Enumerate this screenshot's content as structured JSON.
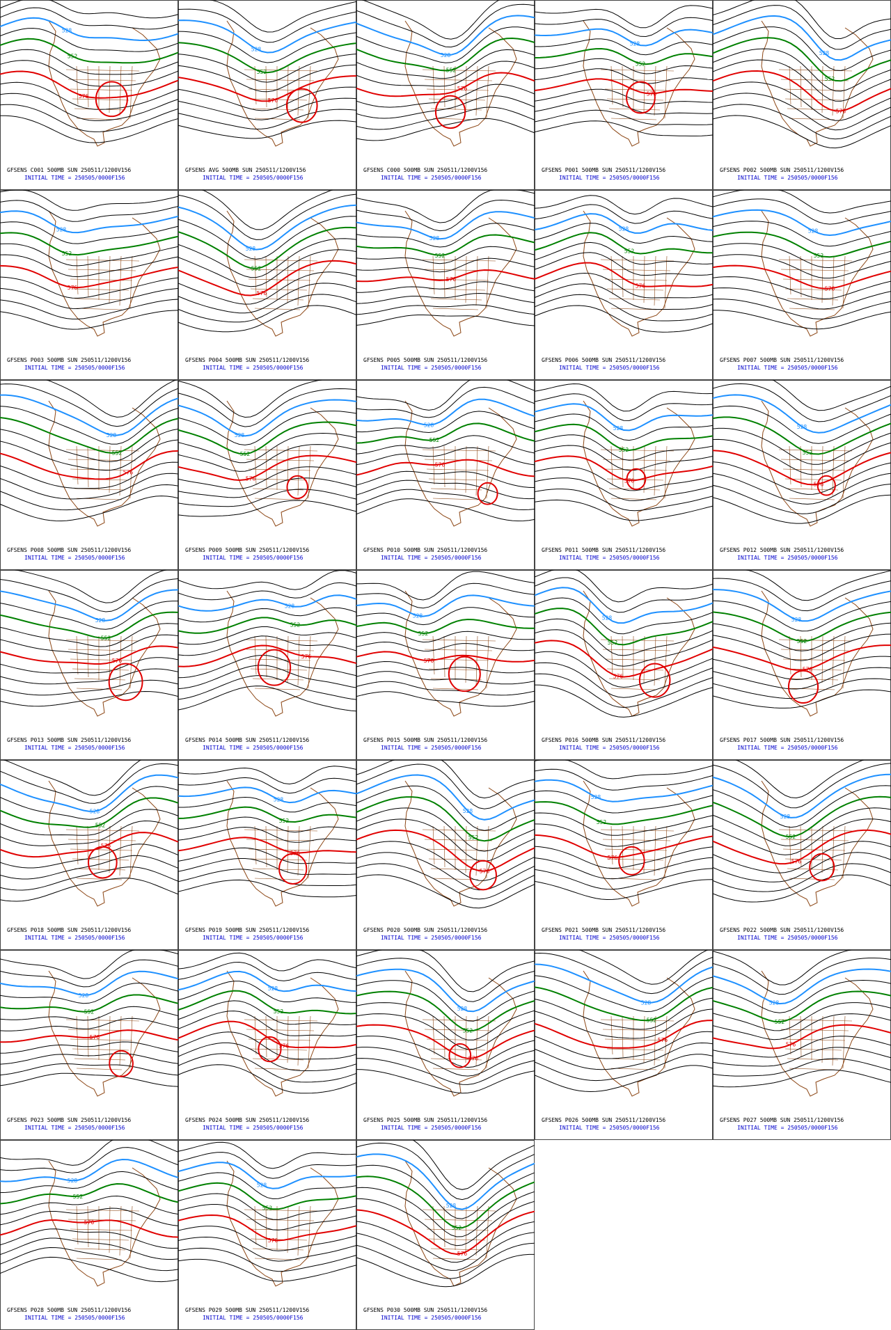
{
  "panels": [
    {
      "title": "GFSENS C001 500MB SUN 250511/1200V156",
      "initial_time": "INITIAL TIME = 250505/0000F156",
      "contour_labels": [
        "528",
        "552",
        "576"
      ]
    },
    {
      "title": "GFSENS AVG 500MB SUN 250511/1200V156",
      "initial_time": "INITIAL TIME = 250505/0000F156",
      "contour_labels": [
        "528",
        "552",
        "576"
      ]
    },
    {
      "title": "GFSENS C000 500MB SUN 250511/1200V156",
      "initial_time": "INITIAL TIME = 250505/0000F156",
      "contour_labels": [
        "528",
        "552",
        "576"
      ]
    },
    {
      "title": "GFSENS P001 500MB SUN 250511/1200V156",
      "initial_time": "INITIAL TIME = 250505/0000F156",
      "contour_labels": [
        "528",
        "552",
        "576"
      ]
    },
    {
      "title": "GFSENS P002 500MB SUN 250511/1200V156",
      "initial_time": "INITIAL TIME = 250505/0000F156",
      "contour_labels": [
        "528",
        "552",
        "576"
      ]
    },
    {
      "title": "GFSENS P003 500MB SUN 250511/1200V156",
      "initial_time": "INITIAL TIME = 250505/0000F156",
      "contour_labels": [
        "528",
        "552",
        "576"
      ]
    },
    {
      "title": "GFSENS P004 500MB SUN 250511/1200V156",
      "initial_time": "INITIAL TIME = 250505/0000F156",
      "contour_labels": [
        "528",
        "552",
        "576"
      ]
    },
    {
      "title": "GFSENS P005 500MB SUN 250511/1200V156",
      "initial_time": "INITIAL TIME = 250505/0000F156",
      "contour_labels": [
        "528",
        "552",
        "576"
      ]
    },
    {
      "title": "GFSENS P006 500MB SUN 250511/1200V156",
      "initial_time": "INITIAL TIME = 250505/0000F156",
      "contour_labels": [
        "528",
        "552",
        "576"
      ]
    },
    {
      "title": "GFSENS P007 500MB SUN 250511/1200V156",
      "initial_time": "INITIAL TIME = 250505/0000F156",
      "contour_labels": [
        "528",
        "552",
        "576"
      ]
    },
    {
      "title": "GFSENS P008 500MB SUN 250511/1200V156",
      "initial_time": "INITIAL TIME = 250505/0000F156",
      "contour_labels": [
        "528",
        "552",
        "576"
      ]
    },
    {
      "title": "GFSENS P009 500MB SUN 250511/1200V156",
      "initial_time": "INITIAL TIME = 250505/0000F156",
      "contour_labels": [
        "528",
        "552",
        "576"
      ]
    },
    {
      "title": "GFSENS P010 500MB SUN 250511/1200V156",
      "initial_time": "INITIAL TIME = 250505/0000F156",
      "contour_labels": [
        "528",
        "552",
        "576"
      ]
    },
    {
      "title": "GFSENS P011 500MB SUN 250511/1200V156",
      "initial_time": "INITIAL TIME = 250505/0000F156",
      "contour_labels": [
        "528",
        "552",
        "576"
      ]
    },
    {
      "title": "GFSENS P012 500MB SUN 250511/1200V156",
      "initial_time": "INITIAL TIME = 250505/0000F156",
      "contour_labels": [
        "528",
        "552",
        "576"
      ]
    },
    {
      "title": "GFSENS P013 500MB SUN 250511/1200V156",
      "initial_time": "INITIAL TIME = 250505/0000F156",
      "contour_labels": [
        "528",
        "552",
        "576"
      ]
    },
    {
      "title": "GFSENS P014 500MB SUN 250511/1200V156",
      "initial_time": "INITIAL TIME = 250505/0000F156",
      "contour_labels": [
        "528",
        "552",
        "576"
      ]
    },
    {
      "title": "GFSENS P015 500MB SUN 250511/1200V156",
      "initial_time": "INITIAL TIME = 250505/0000F156",
      "contour_labels": [
        "528",
        "552",
        "576"
      ]
    },
    {
      "title": "GFSENS P016 500MB SUN 250511/1200V156",
      "initial_time": "INITIAL TIME = 250505/0000F156",
      "contour_labels": [
        "528",
        "552",
        "576"
      ]
    },
    {
      "title": "GFSENS P017 500MB SUN 250511/1200V156",
      "initial_time": "INITIAL TIME = 250505/0000F156",
      "contour_labels": [
        "528",
        "552",
        "576"
      ]
    },
    {
      "title": "GFSENS P018 500MB SUN 250511/1200V156",
      "initial_time": "INITIAL TIME = 250505/0000F156",
      "contour_labels": [
        "528",
        "552",
        "576"
      ]
    },
    {
      "title": "GFSENS P019 500MB SUN 250511/1200V156",
      "initial_time": "INITIAL TIME = 250505/0000F156",
      "contour_labels": [
        "528",
        "552",
        "576"
      ]
    },
    {
      "title": "GFSENS P020 500MB SUN 250511/1200V156",
      "initial_time": "INITIAL TIME = 250505/0000F156",
      "contour_labels": [
        "528",
        "552",
        "576"
      ]
    },
    {
      "title": "GFSENS P021 500MB SUN 250511/1200V156",
      "initial_time": "INITIAL TIME = 250505/0000F156",
      "contour_labels": [
        "528",
        "552",
        "576"
      ]
    },
    {
      "title": "GFSENS P022 500MB SUN 250511/1200V156",
      "initial_time": "INITIAL TIME = 250505/0000F156",
      "contour_labels": [
        "528",
        "552",
        "576"
      ]
    },
    {
      "title": "GFSENS P023 500MB SUN 250511/1200V156",
      "initial_time": "INITIAL TIME = 250505/0000F156",
      "contour_labels": [
        "528",
        "552",
        "576"
      ]
    },
    {
      "title": "GFSENS P024 500MB SUN 250511/1200V156",
      "initial_time": "INITIAL TIME = 250505/0000F156",
      "contour_labels": [
        "528",
        "552",
        "576"
      ]
    },
    {
      "title": "GFSENS P025 500MB SUN 250511/1200V156",
      "initial_time": "INITIAL TIME = 250505/0000F156",
      "contour_labels": [
        "528",
        "552",
        "576"
      ]
    },
    {
      "title": "GFSENS P026 500MB SUN 250511/1200V156",
      "initial_time": "INITIAL TIME = 250505/0000F156",
      "contour_labels": [
        "528",
        "552",
        "576"
      ]
    },
    {
      "title": "GFSENS P027 500MB SUN 250511/1200V156",
      "initial_time": "INITIAL TIME = 250505/0000F156",
      "contour_labels": [
        "528",
        "552",
        "576"
      ]
    },
    {
      "title": "GFSENS P028 500MB SUN 250511/1200V156",
      "initial_time": "INITIAL TIME = 250505/0000F156",
      "contour_labels": [
        "528",
        "552",
        "576"
      ]
    },
    {
      "title": "GFSENS P029 500MB SUN 250511/1200V156",
      "initial_time": "INITIAL TIME = 250505/0000F156",
      "contour_labels": [
        "528",
        "552",
        "576"
      ]
    },
    {
      "title": "GFSENS P030 500MB SUN 250511/1200V156",
      "initial_time": "INITIAL TIME = 250505/0000F156",
      "contour_labels": [
        "528",
        "552",
        "576"
      ]
    }
  ]
}
